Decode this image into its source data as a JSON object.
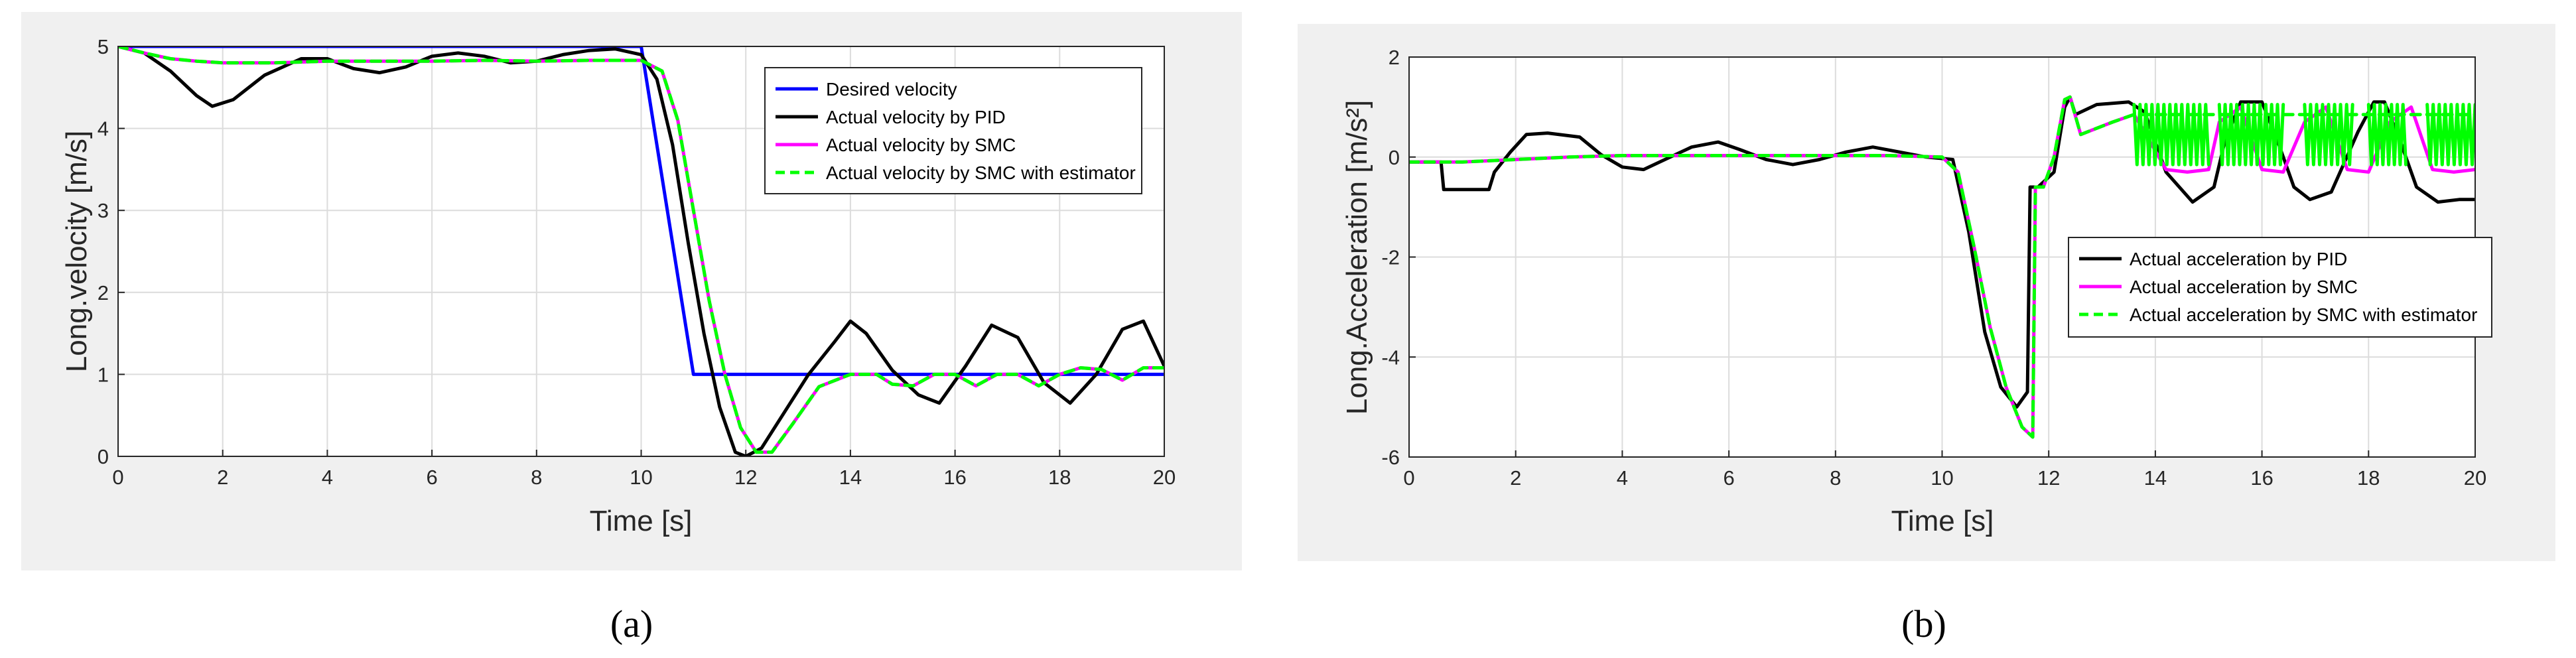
{
  "chart_data": [
    {
      "type": "line",
      "caption": "(a)",
      "xlabel": "Time [s]",
      "ylabel": "Long.velocity [m/s]",
      "xlim": [
        0,
        20
      ],
      "ylim": [
        0,
        5
      ],
      "xticks": [
        0,
        2,
        4,
        6,
        8,
        10,
        12,
        14,
        16,
        18,
        20
      ],
      "yticks": [
        0,
        1,
        2,
        3,
        4,
        5
      ],
      "grid": true,
      "legend_position": "top-right",
      "series": [
        {
          "name": "Desired velocity",
          "color": "#0000ff",
          "dash": "solid",
          "x": [
            0,
            10,
            11,
            20
          ],
          "y": [
            5,
            5,
            1,
            1
          ]
        },
        {
          "name": "Actual velocity by PID",
          "color": "#000000",
          "dash": "solid",
          "x": [
            0,
            0.5,
            1,
            1.5,
            1.8,
            2.2,
            2.8,
            3.5,
            4,
            4.5,
            5,
            5.5,
            6,
            6.5,
            7,
            7.5,
            8,
            8.5,
            9,
            9.5,
            10,
            10.3,
            10.6,
            10.9,
            11.2,
            11.5,
            11.8,
            12,
            12.3,
            12.7,
            13.2,
            13.7,
            14,
            14.3,
            14.8,
            15.3,
            15.7,
            16.2,
            16.7,
            17.2,
            17.7,
            18.2,
            18.7,
            19.2,
            19.6,
            20
          ],
          "y": [
            5,
            4.92,
            4.7,
            4.4,
            4.27,
            4.35,
            4.65,
            4.85,
            4.85,
            4.73,
            4.68,
            4.75,
            4.88,
            4.92,
            4.88,
            4.8,
            4.82,
            4.9,
            4.95,
            4.97,
            4.9,
            4.6,
            3.8,
            2.6,
            1.5,
            0.6,
            0.05,
            0,
            0.1,
            0.5,
            1.0,
            1.4,
            1.65,
            1.5,
            1.05,
            0.75,
            0.65,
            1.1,
            1.6,
            1.45,
            0.9,
            0.65,
            1.0,
            1.55,
            1.65,
            1.1
          ]
        },
        {
          "name": "Actual velocity by SMC",
          "color": "#ff00ff",
          "dash": "solid",
          "x": [
            0,
            0.5,
            1,
            1.5,
            2,
            2.5,
            3,
            4,
            5,
            6,
            7,
            8,
            9,
            10,
            10.4,
            10.7,
            11,
            11.3,
            11.6,
            11.9,
            12.2,
            12.5,
            12.9,
            13.4,
            14,
            14.5,
            14.8,
            15.2,
            15.6,
            16,
            16.4,
            16.8,
            17.2,
            17.6,
            18,
            18.4,
            18.8,
            19.2,
            19.6,
            20
          ],
          "y": [
            5,
            4.92,
            4.85,
            4.82,
            4.8,
            4.8,
            4.8,
            4.82,
            4.82,
            4.82,
            4.83,
            4.82,
            4.83,
            4.83,
            4.7,
            4.1,
            3.0,
            1.9,
            1.0,
            0.35,
            0.05,
            0.05,
            0.4,
            0.85,
            1.0,
            1.0,
            0.88,
            0.86,
            1.0,
            1.0,
            0.86,
            1.0,
            1.0,
            0.86,
            1.0,
            1.08,
            1.06,
            0.93,
            1.08,
            1.08
          ]
        },
        {
          "name": "Actual velocity by SMC with estimator",
          "color": "#00ff00",
          "dash": "dashed",
          "x": [
            0,
            0.5,
            1,
            1.5,
            2,
            2.5,
            3,
            4,
            5,
            6,
            7,
            8,
            9,
            10,
            10.4,
            10.7,
            11,
            11.3,
            11.6,
            11.9,
            12.2,
            12.5,
            12.9,
            13.4,
            14,
            14.5,
            14.8,
            15.2,
            15.6,
            16,
            16.4,
            16.8,
            17.2,
            17.6,
            18,
            18.4,
            18.8,
            19.2,
            19.6,
            20
          ],
          "y": [
            5,
            4.92,
            4.85,
            4.82,
            4.8,
            4.8,
            4.8,
            4.82,
            4.82,
            4.82,
            4.83,
            4.82,
            4.83,
            4.83,
            4.7,
            4.1,
            3.0,
            1.9,
            1.0,
            0.35,
            0.05,
            0.05,
            0.4,
            0.85,
            1.0,
            1.0,
            0.88,
            0.86,
            1.0,
            1.0,
            0.86,
            1.0,
            1.0,
            0.86,
            1.0,
            1.08,
            1.06,
            0.93,
            1.08,
            1.08
          ]
        }
      ]
    },
    {
      "type": "line",
      "caption": "(b)",
      "xlabel": "Time [s]",
      "ylabel": "Long.Acceleration [m/s²]",
      "xlim": [
        0,
        20
      ],
      "ylim": [
        -6,
        2
      ],
      "xticks": [
        0,
        2,
        4,
        6,
        8,
        10,
        12,
        14,
        16,
        18,
        20
      ],
      "yticks": [
        -6,
        -4,
        -2,
        0,
        2
      ],
      "grid": true,
      "legend_position": "middle-right",
      "series": [
        {
          "name": "Actual acceleration by PID",
          "color": "#000000",
          "dash": "solid",
          "x": [
            0,
            0.6,
            0.65,
            1.5,
            1.6,
            1.9,
            2.2,
            2.6,
            3.2,
            3.6,
            4.0,
            4.4,
            4.8,
            5.3,
            5.8,
            6.2,
            6.7,
            7.2,
            7.7,
            8.2,
            8.7,
            9.2,
            9.7,
            10.2,
            10.5,
            10.8,
            11.1,
            11.4,
            11.6,
            11.65,
            11.7,
            11.8,
            12.1,
            12.3,
            12.4,
            12.5,
            12.9,
            13.5,
            13.8,
            14.2,
            14.7,
            15.1,
            15.3,
            15.6,
            16.0,
            16.3,
            16.6,
            16.9,
            17.3,
            17.8,
            18.1,
            18.3,
            18.6,
            18.9,
            19.3,
            19.7,
            20
          ],
          "y": [
            -0.1,
            -0.1,
            -0.65,
            -0.65,
            -0.3,
            0.1,
            0.45,
            0.48,
            0.4,
            0.05,
            -0.2,
            -0.25,
            -0.05,
            0.2,
            0.3,
            0.15,
            -0.05,
            -0.15,
            -0.05,
            0.1,
            0.2,
            0.1,
            0.0,
            -0.05,
            -1.5,
            -3.5,
            -4.6,
            -5.0,
            -4.7,
            -0.6,
            -0.6,
            -0.6,
            -0.3,
            1.0,
            1.2,
            0.85,
            1.05,
            1.1,
            0.9,
            -0.3,
            -0.9,
            -0.6,
            0.3,
            1.1,
            1.1,
            0.3,
            -0.6,
            -0.85,
            -0.7,
            0.5,
            1.1,
            1.1,
            0.3,
            -0.6,
            -0.9,
            -0.85,
            -0.85
          ]
        },
        {
          "name": "Actual acceleration by SMC",
          "color": "#ff00ff",
          "dash": "solid",
          "x": [
            0,
            1,
            2,
            3,
            4,
            5,
            6,
            7,
            8,
            9,
            10,
            10.3,
            10.6,
            10.9,
            11.2,
            11.5,
            11.7,
            11.75,
            11.9,
            12.1,
            12.3,
            12.4,
            12.6,
            13.2,
            13.6,
            13.8,
            14.2,
            14.6,
            15.0,
            15.2,
            15.6,
            16.0,
            16.4,
            16.8,
            17.2,
            17.6,
            18.0,
            18.4,
            18.8,
            19.2,
            19.6,
            20
          ],
          "y": [
            -0.1,
            -0.1,
            -0.05,
            0.0,
            0.03,
            0.03,
            0.03,
            0.03,
            0.03,
            0.03,
            0.0,
            -0.3,
            -1.8,
            -3.4,
            -4.6,
            -5.4,
            -5.6,
            -0.6,
            -0.6,
            0.0,
            1.15,
            1.2,
            0.45,
            0.7,
            0.85,
            0.5,
            -0.25,
            -0.3,
            -0.25,
            0.7,
            1.0,
            -0.25,
            -0.3,
            0.7,
            1.0,
            -0.25,
            -0.3,
            0.7,
            1.0,
            -0.25,
            -0.3,
            -0.25
          ]
        },
        {
          "name": "Actual acceleration by SMC with estimator",
          "color": "#00ff00",
          "dash": "dashed",
          "x": [
            0,
            1,
            2,
            3,
            4,
            5,
            6,
            7,
            8,
            9,
            10,
            10.3,
            10.6,
            10.9,
            11.2,
            11.5,
            11.7,
            11.75,
            11.9,
            12.1,
            12.3,
            12.4,
            12.6,
            13.2,
            13.6,
            20
          ],
          "y": [
            -0.1,
            -0.1,
            -0.05,
            0.0,
            0.03,
            0.03,
            0.03,
            0.03,
            0.03,
            0.03,
            0.0,
            -0.3,
            -1.8,
            -3.4,
            -4.6,
            -5.4,
            -5.6,
            -0.6,
            -0.6,
            0.0,
            1.15,
            1.2,
            0.45,
            0.7,
            0.85,
            0.85
          ],
          "chatter_bands": [
            {
              "x_start": 13.6,
              "x_end": 15.0,
              "y_low": -0.15,
              "y_high": 1.05
            },
            {
              "x_start": 15.2,
              "x_end": 16.4,
              "y_low": -0.15,
              "y_high": 1.05
            },
            {
              "x_start": 16.8,
              "x_end": 17.7,
              "y_low": -0.15,
              "y_high": 1.05
            },
            {
              "x_start": 18.0,
              "x_end": 18.7,
              "y_low": -0.15,
              "y_high": 1.05
            },
            {
              "x_start": 19.1,
              "x_end": 20.0,
              "y_low": -0.15,
              "y_high": 1.05
            }
          ]
        }
      ]
    }
  ]
}
